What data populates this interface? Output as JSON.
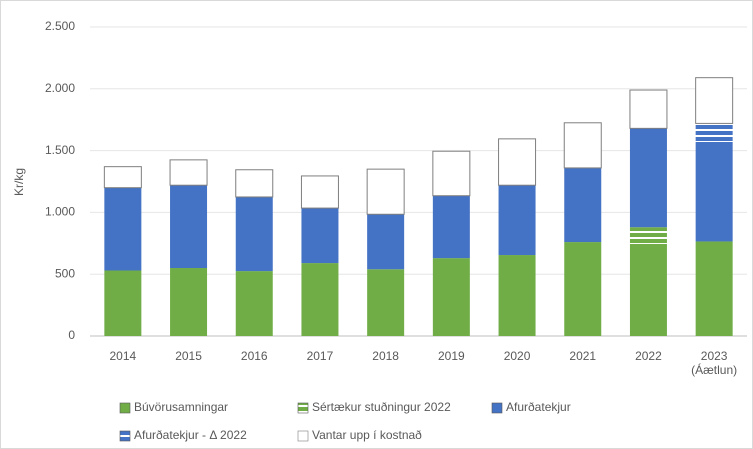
{
  "chart_data": {
    "type": "stacked_bar",
    "y_label": "Kr/kg",
    "categories": [
      "2014",
      "2015",
      "2016",
      "2017",
      "2018",
      "2019",
      "2020",
      "2021",
      "2022",
      "2023\n(Áætlun)"
    ],
    "series": [
      {
        "name": "Búvörusamningar",
        "color": "#70ad47",
        "values": [
          530,
          550,
          525,
          590,
          540,
          630,
          655,
          760,
          745,
          765
        ]
      },
      {
        "name": "Sértækur stuðningur 2022",
        "color": "#70ad47",
        "hatch": true,
        "values": [
          0,
          0,
          0,
          0,
          0,
          0,
          0,
          0,
          135,
          0
        ]
      },
      {
        "name": "Afurðatekjur",
        "color": "#4472c4",
        "values": [
          670,
          670,
          600,
          445,
          445,
          505,
          565,
          600,
          800,
          805
        ]
      },
      {
        "name": "Afurðatekjur - Δ 2022",
        "color": "#4472c4",
        "hatch": true,
        "values": [
          0,
          0,
          0,
          0,
          0,
          0,
          0,
          0,
          0,
          150
        ]
      },
      {
        "name": "Vantar upp í kostnað",
        "color": "#ffffff",
        "values": [
          170,
          205,
          220,
          260,
          365,
          360,
          375,
          365,
          310,
          370
        ]
      }
    ],
    "ylim": [
      0,
      2500
    ],
    "yticks": [
      0,
      500,
      {
        "value": 1000,
        "label": "1.000"
      },
      {
        "value": 1500,
        "label": "1.500"
      },
      {
        "value": 2000,
        "label": "2.000"
      },
      {
        "value": 2500,
        "label": "2.500"
      }
    ],
    "grid": true,
    "legend": "bottom"
  }
}
